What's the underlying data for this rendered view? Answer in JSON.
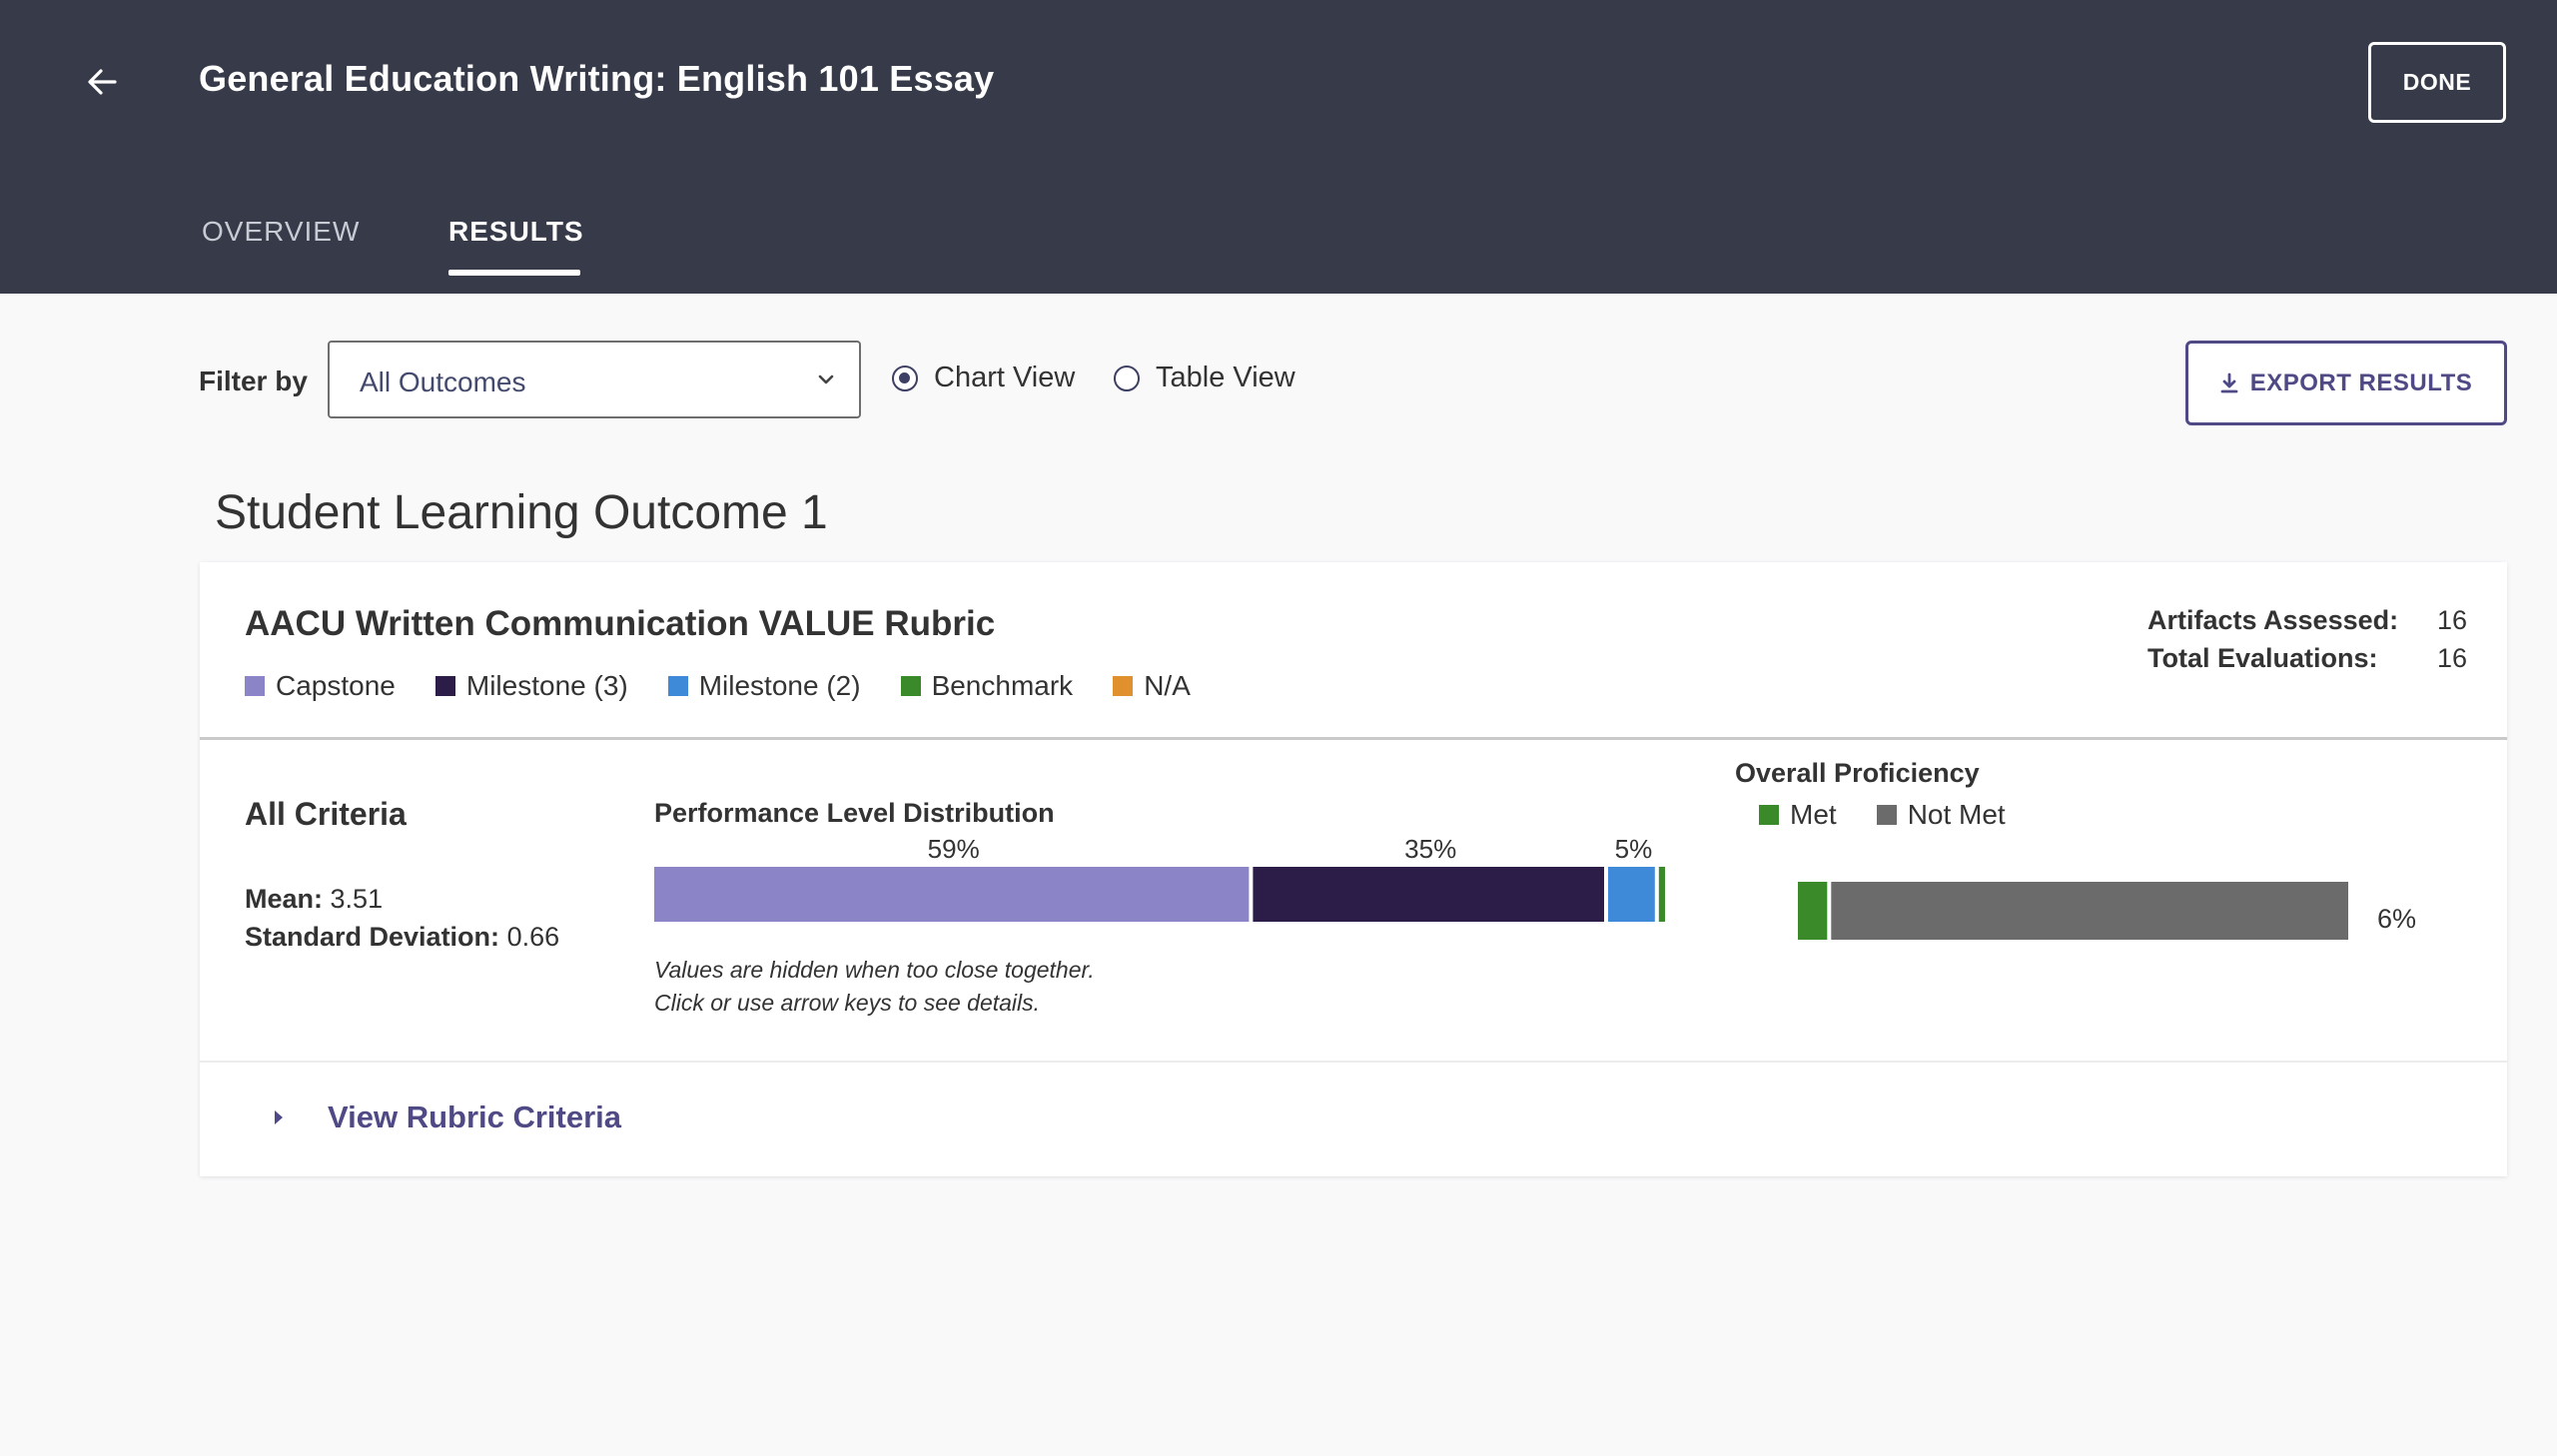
{
  "header": {
    "back_icon": "arrow-left-icon",
    "title": "General Education Writing: English 101 Essay",
    "done_label": "DONE"
  },
  "tabs": [
    {
      "label": "OVERVIEW",
      "active": false
    },
    {
      "label": "RESULTS",
      "active": true
    }
  ],
  "filter": {
    "label": "Filter by",
    "selected": "All Outcomes",
    "options_icon": "chevron-down-icon"
  },
  "view_toggle": {
    "chart_label": "Chart View",
    "table_label": "Table View",
    "selected": "Chart View"
  },
  "export": {
    "label": "EXPORT RESULTS",
    "icon": "download-icon"
  },
  "outcome": {
    "title": "Student Learning Outcome 1"
  },
  "rubric": {
    "title": "AACU Written Communication VALUE Rubric",
    "legend": [
      {
        "label": "Capstone",
        "color": "#8b85c8"
      },
      {
        "label": "Milestone (3)",
        "color": "#2b1d47"
      },
      {
        "label": "Milestone (2)",
        "color": "#3f8ad8"
      },
      {
        "label": "Benchmark",
        "color": "#3b8a2a"
      },
      {
        "label": "N/A",
        "color": "#e0912e"
      }
    ],
    "stats": [
      {
        "label": "Artifacts Assessed:",
        "value": "16"
      },
      {
        "label": "Total Evaluations:",
        "value": "16"
      }
    ]
  },
  "criteria": {
    "title": "All Criteria",
    "mean_label": "Mean:",
    "mean_value": "3.51",
    "sd_label": "Standard Deviation:",
    "sd_value": "0.66",
    "note_line1": "Values are hidden when too close together.",
    "note_line2": "Click or use arrow keys to see details.",
    "view_criteria_label": "View Rubric Criteria",
    "expand_icon": "caret-right-icon"
  },
  "chart_data": [
    {
      "type": "bar",
      "title": "Performance Level Distribution",
      "orientation": "horizontal-stacked",
      "categories": [
        "Capstone",
        "Milestone (3)",
        "Milestone (2)",
        "Benchmark"
      ],
      "values": [
        59,
        35,
        5,
        1
      ],
      "value_labels": [
        "59%",
        "35%",
        "5%",
        ""
      ],
      "colors": [
        "#8b85c8",
        "#2b1d47",
        "#3f8ad8",
        "#3b8a2a"
      ],
      "unit": "%"
    },
    {
      "type": "bar",
      "title": "Overall Proficiency",
      "orientation": "horizontal-stacked",
      "categories": [
        "Met",
        "Not Met"
      ],
      "values": [
        6,
        94
      ],
      "value_labels": [
        "6%",
        ""
      ],
      "colors": [
        "#3b8a2a",
        "#6b6b6b"
      ],
      "unit": "%"
    }
  ]
}
